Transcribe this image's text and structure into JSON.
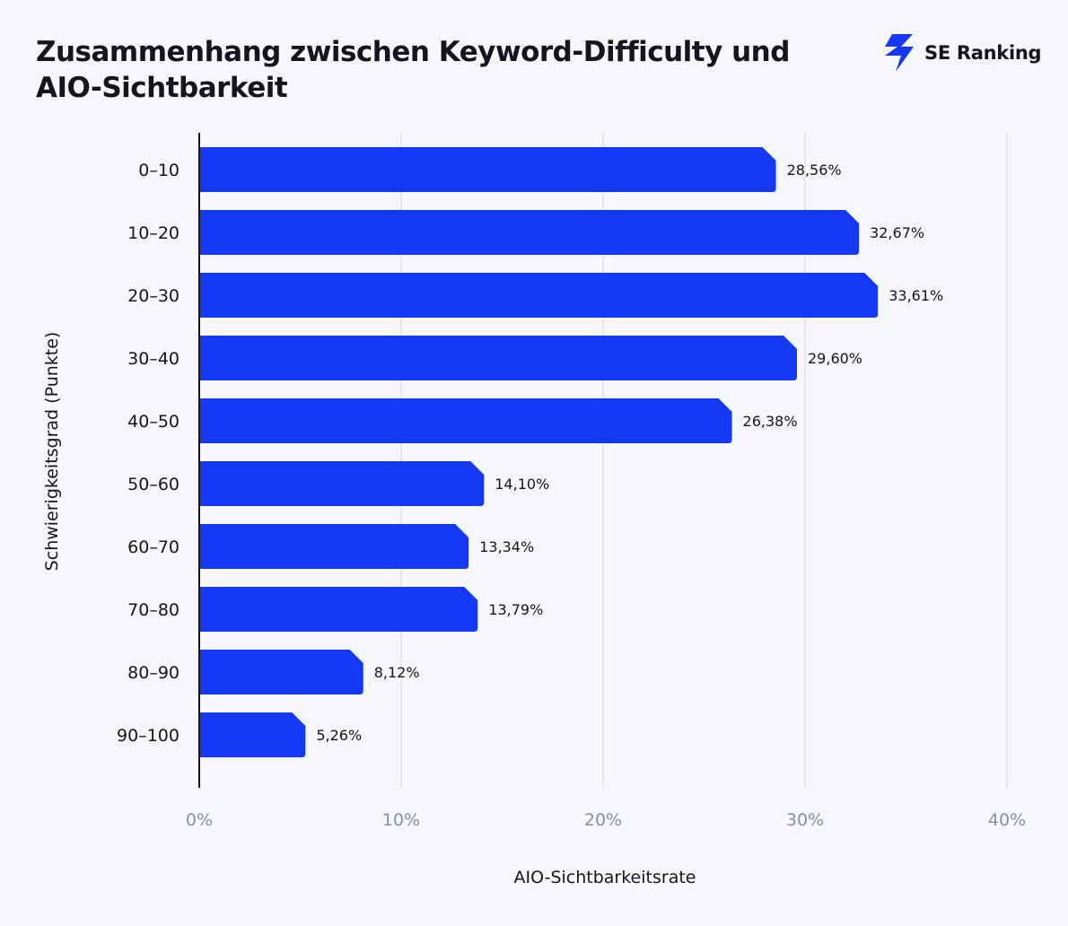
{
  "header": {
    "title_line1": "Zusammenhang zwischen Keyword-Difficulty und",
    "title_line2": "AIO-Sichtbarkeit",
    "brand_name": "SE Ranking"
  },
  "colors": {
    "bar": "#1538f5",
    "brand": "#1538f5",
    "grid": "#dfe2ea"
  },
  "chart_data": {
    "type": "bar",
    "orientation": "horizontal",
    "xlabel": "AIO-Sichtbarkeitsrate",
    "ylabel": "Schwierigkeitsgrad (Punkte)",
    "xlim": [
      0,
      40
    ],
    "xticks": [
      0,
      10,
      20,
      30,
      40
    ],
    "xtick_labels": [
      "0%",
      "10%",
      "20%",
      "30%",
      "40%"
    ],
    "categories": [
      "0–10",
      "10–20",
      "20–30",
      "30–40",
      "40–50",
      "50–60",
      "60–70",
      "70–80",
      "80–90",
      "90–100"
    ],
    "values": [
      28.56,
      32.67,
      33.61,
      29.6,
      26.38,
      14.1,
      13.34,
      13.79,
      8.12,
      5.26
    ],
    "value_labels": [
      "28,56%",
      "32,67%",
      "33,61%",
      "29,60%",
      "26,38%",
      "14,10%",
      "13,34%",
      "13,79%",
      "8,12%",
      "5,26%"
    ]
  }
}
